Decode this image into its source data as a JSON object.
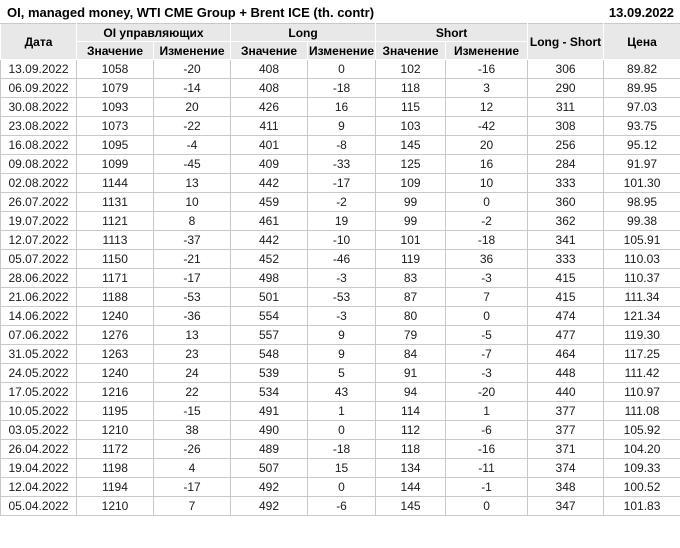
{
  "title": {
    "text": "OI, managed money, WTI CME Group + Brent ICE (th. contr)",
    "report_date": "13.09.2022"
  },
  "table": {
    "header": {
      "date": "Дата",
      "oi_group": "OI управляющих",
      "long_group": "Long",
      "short_group": "Short",
      "value": "Значение",
      "change": "Изменение",
      "net": "Long - Short",
      "price": "Цена"
    },
    "colors": {
      "pos": "#009900",
      "neg": "#cc0000",
      "header_bg": "#e8e8e8",
      "grid_line": "#c9c9c9"
    },
    "rows": [
      {
        "date": "13.09.2022",
        "oi": "1058",
        "oi_chg": "-20",
        "oi_c": "neg",
        "long": "408",
        "long_chg": "0",
        "long_c": "neu",
        "short": "102",
        "short_chg": "-16",
        "short_c": "neg",
        "net": "306",
        "price": "89.82"
      },
      {
        "date": "06.09.2022",
        "oi": "1079",
        "oi_chg": "-14",
        "oi_c": "neg",
        "long": "408",
        "long_chg": "-18",
        "long_c": "neg",
        "short": "118",
        "short_chg": "3",
        "short_c": "pos",
        "net": "290",
        "price": "89.95"
      },
      {
        "date": "30.08.2022",
        "oi": "1093",
        "oi_chg": "20",
        "oi_c": "pos",
        "long": "426",
        "long_chg": "16",
        "long_c": "pos",
        "short": "115",
        "short_chg": "12",
        "short_c": "pos",
        "net": "311",
        "price": "97.03"
      },
      {
        "date": "23.08.2022",
        "oi": "1073",
        "oi_chg": "-22",
        "oi_c": "neg",
        "long": "411",
        "long_chg": "9",
        "long_c": "pos",
        "short": "103",
        "short_chg": "-42",
        "short_c": "neg",
        "net": "308",
        "price": "93.75"
      },
      {
        "date": "16.08.2022",
        "oi": "1095",
        "oi_chg": "-4",
        "oi_c": "neg",
        "long": "401",
        "long_chg": "-8",
        "long_c": "neg",
        "short": "145",
        "short_chg": "20",
        "short_c": "pos",
        "net": "256",
        "price": "95.12"
      },
      {
        "date": "09.08.2022",
        "oi": "1099",
        "oi_chg": "-45",
        "oi_c": "neg",
        "long": "409",
        "long_chg": "-33",
        "long_c": "neg",
        "short": "125",
        "short_chg": "16",
        "short_c": "pos",
        "net": "284",
        "price": "91.97"
      },
      {
        "date": "02.08.2022",
        "oi": "1144",
        "oi_chg": "13",
        "oi_c": "pos",
        "long": "442",
        "long_chg": "-17",
        "long_c": "neg",
        "short": "109",
        "short_chg": "10",
        "short_c": "pos",
        "net": "333",
        "price": "101.30"
      },
      {
        "date": "26.07.2022",
        "oi": "1131",
        "oi_chg": "10",
        "oi_c": "pos",
        "long": "459",
        "long_chg": "-2",
        "long_c": "neg",
        "short": "99",
        "short_chg": "0",
        "short_c": "pos",
        "net": "360",
        "price": "98.95"
      },
      {
        "date": "19.07.2022",
        "oi": "1121",
        "oi_chg": "8",
        "oi_c": "pos",
        "long": "461",
        "long_chg": "19",
        "long_c": "pos",
        "short": "99",
        "short_chg": "-2",
        "short_c": "neg",
        "net": "362",
        "price": "99.38"
      },
      {
        "date": "12.07.2022",
        "oi": "1113",
        "oi_chg": "-37",
        "oi_c": "neg",
        "long": "442",
        "long_chg": "-10",
        "long_c": "neg",
        "short": "101",
        "short_chg": "-18",
        "short_c": "neg",
        "net": "341",
        "price": "105.91"
      },
      {
        "date": "05.07.2022",
        "oi": "1150",
        "oi_chg": "-21",
        "oi_c": "neg",
        "long": "452",
        "long_chg": "-46",
        "long_c": "neg",
        "short": "119",
        "short_chg": "36",
        "short_c": "pos",
        "net": "333",
        "price": "110.03"
      },
      {
        "date": "28.06.2022",
        "oi": "1171",
        "oi_chg": "-17",
        "oi_c": "neg",
        "long": "498",
        "long_chg": "-3",
        "long_c": "neg",
        "short": "83",
        "short_chg": "-3",
        "short_c": "neg",
        "net": "415",
        "price": "110.37"
      },
      {
        "date": "21.06.2022",
        "oi": "1188",
        "oi_chg": "-53",
        "oi_c": "neg",
        "long": "501",
        "long_chg": "-53",
        "long_c": "neg",
        "short": "87",
        "short_chg": "7",
        "short_c": "pos",
        "net": "415",
        "price": "111.34"
      },
      {
        "date": "14.06.2022",
        "oi": "1240",
        "oi_chg": "-36",
        "oi_c": "neg",
        "long": "554",
        "long_chg": "-3",
        "long_c": "neg",
        "short": "80",
        "short_chg": "0",
        "short_c": "pos",
        "net": "474",
        "price": "121.34"
      },
      {
        "date": "07.06.2022",
        "oi": "1276",
        "oi_chg": "13",
        "oi_c": "pos",
        "long": "557",
        "long_chg": "9",
        "long_c": "pos",
        "short": "79",
        "short_chg": "-5",
        "short_c": "neg",
        "net": "477",
        "price": "119.30"
      },
      {
        "date": "31.05.2022",
        "oi": "1263",
        "oi_chg": "23",
        "oi_c": "pos",
        "long": "548",
        "long_chg": "9",
        "long_c": "pos",
        "short": "84",
        "short_chg": "-7",
        "short_c": "neg",
        "net": "464",
        "price": "117.25"
      },
      {
        "date": "24.05.2022",
        "oi": "1240",
        "oi_chg": "24",
        "oi_c": "pos",
        "long": "539",
        "long_chg": "5",
        "long_c": "pos",
        "short": "91",
        "short_chg": "-3",
        "short_c": "neg",
        "net": "448",
        "price": "111.42"
      },
      {
        "date": "17.05.2022",
        "oi": "1216",
        "oi_chg": "22",
        "oi_c": "pos",
        "long": "534",
        "long_chg": "43",
        "long_c": "pos",
        "short": "94",
        "short_chg": "-20",
        "short_c": "neg",
        "net": "440",
        "price": "110.97"
      },
      {
        "date": "10.05.2022",
        "oi": "1195",
        "oi_chg": "-15",
        "oi_c": "neg",
        "long": "491",
        "long_chg": "1",
        "long_c": "pos",
        "short": "114",
        "short_chg": "1",
        "short_c": "pos",
        "net": "377",
        "price": "111.08"
      },
      {
        "date": "03.05.2022",
        "oi": "1210",
        "oi_chg": "38",
        "oi_c": "pos",
        "long": "490",
        "long_chg": "0",
        "long_c": "pos",
        "short": "112",
        "short_chg": "-6",
        "short_c": "neg",
        "net": "377",
        "price": "105.92"
      },
      {
        "date": "26.04.2022",
        "oi": "1172",
        "oi_chg": "-26",
        "oi_c": "neg",
        "long": "489",
        "long_chg": "-18",
        "long_c": "neg",
        "short": "118",
        "short_chg": "-16",
        "short_c": "neg",
        "net": "371",
        "price": "104.20"
      },
      {
        "date": "19.04.2022",
        "oi": "1198",
        "oi_chg": "4",
        "oi_c": "pos",
        "long": "507",
        "long_chg": "15",
        "long_c": "pos",
        "short": "134",
        "short_chg": "-11",
        "short_c": "neg",
        "net": "374",
        "price": "109.33"
      },
      {
        "date": "12.04.2022",
        "oi": "1194",
        "oi_chg": "-17",
        "oi_c": "neg",
        "long": "492",
        "long_chg": "0",
        "long_c": "neg",
        "short": "144",
        "short_chg": "-1",
        "short_c": "neg",
        "net": "348",
        "price": "100.52"
      },
      {
        "date": "05.04.2022",
        "oi": "1210",
        "oi_chg": "7",
        "oi_c": "pos",
        "long": "492",
        "long_chg": "-6",
        "long_c": "neg",
        "short": "145",
        "short_chg": "0",
        "short_c": "pos",
        "net": "347",
        "price": "101.83"
      }
    ]
  }
}
